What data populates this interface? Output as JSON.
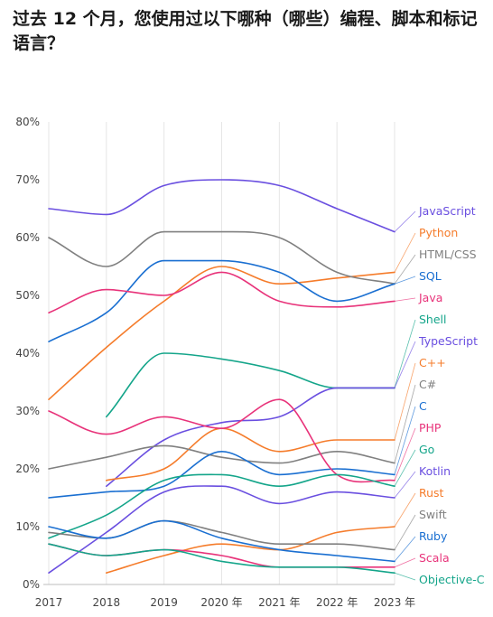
{
  "title": "过去 12 个月，您使用过以下哪种（哪些）编程、脚本和标记语言？",
  "chart_data": {
    "type": "line",
    "title": "过去 12 个月，您使用过以下哪种（哪些）编程、脚本和标记语言？",
    "x": [
      "2017",
      "2018",
      "2019",
      "2020 年",
      "2021 年",
      "2022 年",
      "2023 年"
    ],
    "ylim": [
      0,
      80
    ],
    "yticks": [
      "0%",
      "10%",
      "20%",
      "30%",
      "40%",
      "50%",
      "60%",
      "70%",
      "80%"
    ],
    "grid": "vertical",
    "legend_placement": "right",
    "series": [
      {
        "name": "JavaScript",
        "color": "#6a4fe0",
        "values": [
          65,
          64,
          69,
          70,
          69,
          65,
          61
        ]
      },
      {
        "name": "Python",
        "color": "#f57c2b",
        "values": [
          32,
          41,
          49,
          55,
          52,
          53,
          54
        ]
      },
      {
        "name": "HTML/CSS",
        "color": "#808080",
        "values": [
          60,
          55,
          61,
          61,
          60,
          54,
          52
        ]
      },
      {
        "name": "SQL",
        "color": "#1a6fd1",
        "values": [
          42,
          47,
          56,
          56,
          54,
          49,
          52
        ]
      },
      {
        "name": "Java",
        "color": "#e8337a",
        "values": [
          47,
          51,
          50,
          54,
          49,
          48,
          49
        ]
      },
      {
        "name": "Shell",
        "color": "#14a58a",
        "values": [
          null,
          29,
          40,
          39,
          37,
          34,
          34
        ]
      },
      {
        "name": "TypeScript",
        "color": "#6a4fe0",
        "values": [
          null,
          17,
          25,
          28,
          29,
          34,
          34
        ]
      },
      {
        "name": "C++",
        "color": "#f57c2b",
        "values": [
          null,
          18,
          20,
          27,
          23,
          25,
          25
        ]
      },
      {
        "name": "C#",
        "color": "#808080",
        "values": [
          20,
          22,
          24,
          22,
          21,
          23,
          21
        ]
      },
      {
        "name": "C",
        "color": "#1a6fd1",
        "values": [
          15,
          16,
          17,
          23,
          19,
          20,
          19
        ]
      },
      {
        "name": "PHP",
        "color": "#e8337a",
        "values": [
          30,
          26,
          29,
          27,
          32,
          19,
          18
        ]
      },
      {
        "name": "Go",
        "color": "#14a58a",
        "values": [
          8,
          12,
          18,
          19,
          17,
          19,
          17
        ]
      },
      {
        "name": "Kotlin",
        "color": "#6a4fe0",
        "values": [
          2,
          9,
          16,
          17,
          14,
          16,
          15
        ]
      },
      {
        "name": "Rust",
        "color": "#f57c2b",
        "values": [
          null,
          2,
          5,
          7,
          6,
          9,
          10
        ]
      },
      {
        "name": "Swift",
        "color": "#808080",
        "values": [
          9,
          8,
          11,
          9,
          7,
          7,
          6
        ]
      },
      {
        "name": "Ruby",
        "color": "#1a6fd1",
        "values": [
          10,
          8,
          11,
          8,
          6,
          5,
          4
        ]
      },
      {
        "name": "Scala",
        "color": "#e8337a",
        "values": [
          7,
          5,
          6,
          5,
          3,
          3,
          3
        ]
      },
      {
        "name": "Objective-C",
        "color": "#14a58a",
        "values": [
          7,
          5,
          6,
          4,
          3,
          3,
          2
        ]
      }
    ]
  }
}
